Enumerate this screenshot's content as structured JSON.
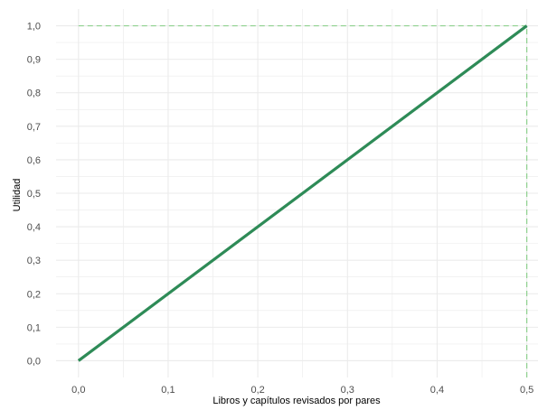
{
  "chart_data": {
    "type": "line",
    "title": "",
    "xlabel": "Libros y capítulos revisados por pares",
    "ylabel": "Utilidad",
    "xlim": [
      -0.025,
      0.5125
    ],
    "ylim": [
      -0.05,
      1.05
    ],
    "x_ticks": [
      0.0,
      0.1,
      0.2,
      0.3,
      0.4,
      0.5
    ],
    "x_tick_labels": [
      "0,0",
      "0,1",
      "0,2",
      "0,3",
      "0,4",
      "0,5"
    ],
    "y_ticks": [
      0.0,
      0.1,
      0.2,
      0.3,
      0.4,
      0.5,
      0.6,
      0.7,
      0.8,
      0.9,
      1.0
    ],
    "y_tick_labels": [
      "0,0",
      "0,1",
      "0,2",
      "0,3",
      "0,4",
      "0,5",
      "0,6",
      "0,7",
      "0,8",
      "0,9",
      "1,0"
    ],
    "grid": true,
    "legend": "none",
    "series": [
      {
        "x": [
          0.0,
          0.5
        ],
        "y": [
          0.0,
          1.0
        ],
        "color": "#2e8b57"
      }
    ],
    "reference_lines": [
      {
        "type": "horizontal",
        "y": 1.0,
        "from_x": 0.0,
        "to_x": 0.5,
        "style": "dashed",
        "color": "#8fd18f"
      },
      {
        "type": "vertical",
        "x": 0.5,
        "from_y": -0.05,
        "to_y": 1.0,
        "style": "dashed",
        "color": "#8fd18f"
      }
    ],
    "colors": {
      "grid": "#ebebeb",
      "tick_text": "#4d4d4d"
    }
  }
}
